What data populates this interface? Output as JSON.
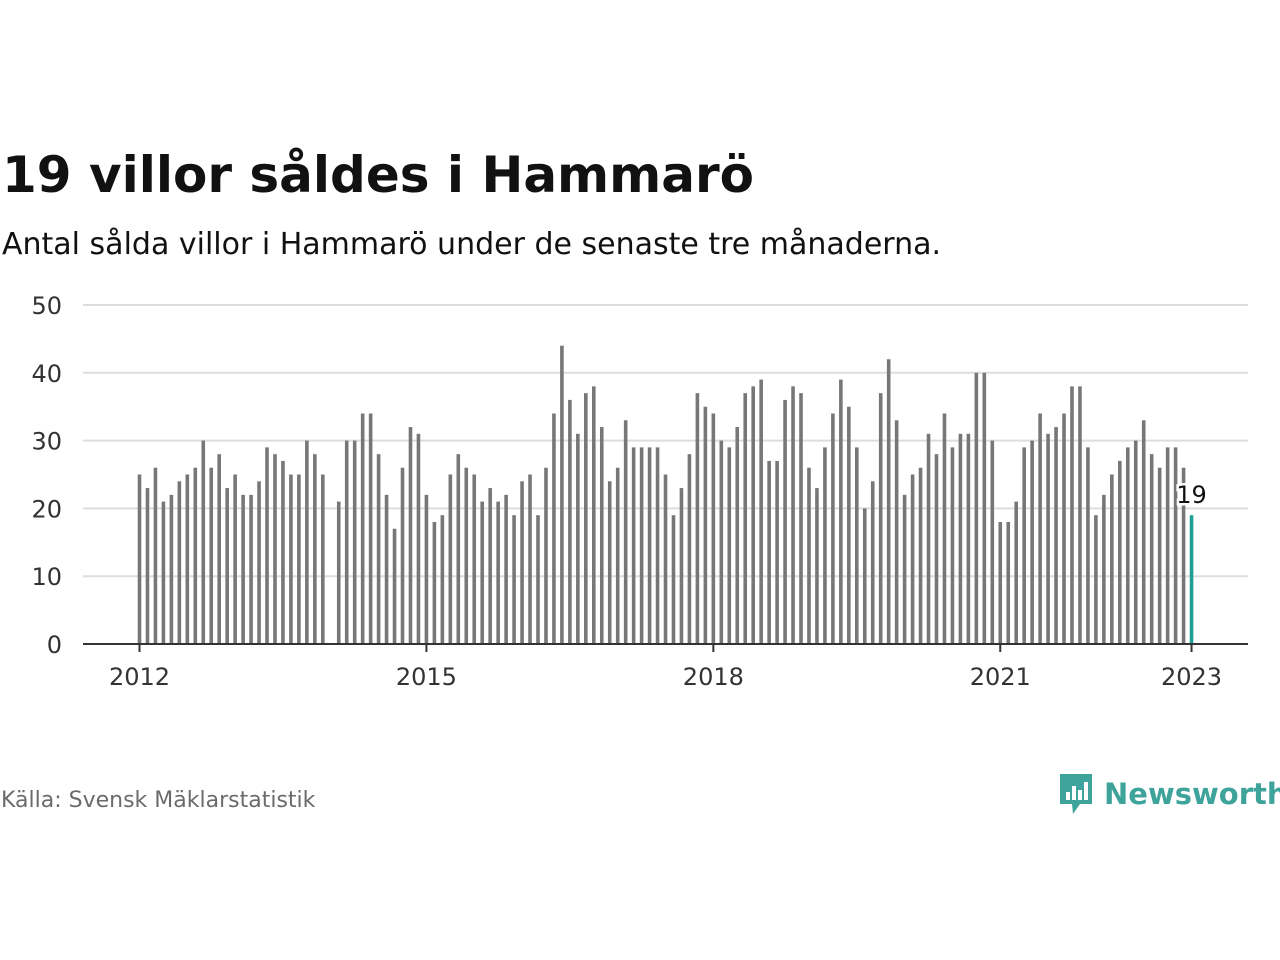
{
  "header": {
    "title": "19 villor såldes i Hammarö",
    "subtitle": "Antal sålda villor i Hammarö under de senaste tre månaderna."
  },
  "footer": {
    "source": "Källa: Svensk Mäklarstatistik",
    "brand": "Newsworthy",
    "brand_icon": "chat-bar-chart-icon"
  },
  "colors": {
    "bar": "#777777",
    "highlight": "#1f9e96",
    "grid": "#dddddd",
    "axis": "#333333",
    "brand": "#3ea39a"
  },
  "chart_data": {
    "type": "bar",
    "ylim": [
      0,
      50
    ],
    "y_ticks": [
      "0",
      "10",
      "20",
      "30",
      "40",
      "50"
    ],
    "x_ticks": [
      "2012",
      "2015",
      "2018",
      "2021",
      "2023"
    ],
    "x_tick_years": [
      2012,
      2015,
      2018,
      2021,
      2023
    ],
    "first_year": 2012,
    "grid": true,
    "highlight_label": "19",
    "values": [
      25,
      23,
      26,
      21,
      22,
      24,
      25,
      26,
      30,
      26,
      28,
      23,
      25,
      22,
      22,
      24,
      29,
      28,
      27,
      25,
      25,
      30,
      28,
      25,
      null,
      21,
      30,
      30,
      34,
      34,
      28,
      22,
      17,
      26,
      32,
      31,
      22,
      18,
      19,
      25,
      28,
      26,
      25,
      21,
      23,
      21,
      22,
      19,
      24,
      25,
      19,
      26,
      34,
      44,
      36,
      31,
      37,
      38,
      32,
      24,
      26,
      33,
      29,
      29,
      29,
      29,
      25,
      19,
      23,
      28,
      37,
      35,
      34,
      30,
      29,
      32,
      37,
      38,
      39,
      27,
      27,
      36,
      38,
      37,
      26,
      23,
      29,
      34,
      39,
      35,
      29,
      20,
      24,
      37,
      42,
      33,
      22,
      25,
      26,
      31,
      28,
      34,
      29,
      31,
      31,
      40,
      40,
      30,
      18,
      18,
      21,
      29,
      30,
      34,
      31,
      32,
      34,
      38,
      38,
      29,
      19,
      22,
      25,
      27,
      29,
      30,
      33,
      28,
      26,
      29,
      29,
      26,
      19
    ]
  }
}
